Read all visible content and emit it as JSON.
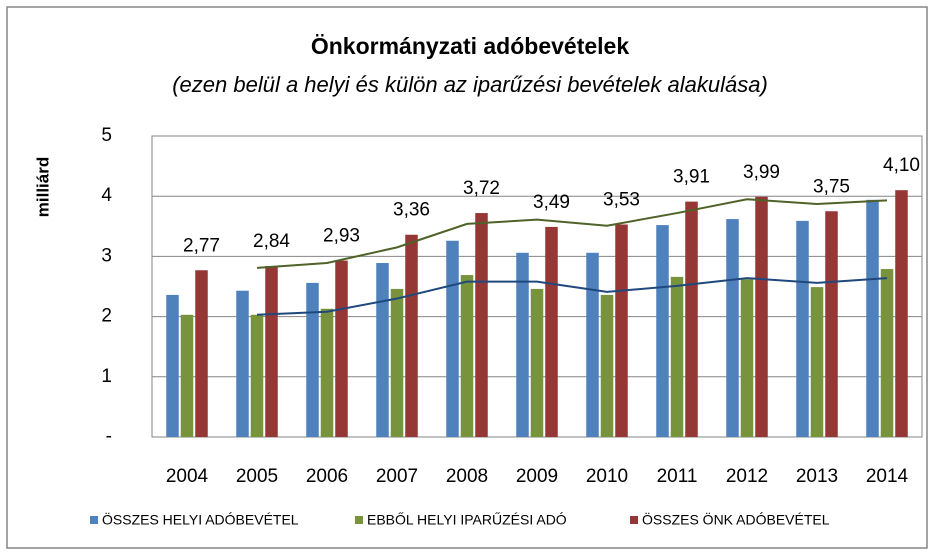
{
  "chart_data": {
    "type": "bar",
    "title": "Önkormányzati adóbevételek",
    "subtitle": "(ezen belül a helyi és külön az iparűzési bevételek alakulása)",
    "y_label": "milliárd",
    "categories": [
      "2004",
      "2005",
      "2006",
      "2007",
      "2008",
      "2009",
      "2010",
      "2011",
      "2012",
      "2013",
      "2014"
    ],
    "series": [
      {
        "name": "ÖSSZES HELYI ADÓBEVÉTEL",
        "color": "#4f81bd",
        "values": [
          2.36,
          2.43,
          2.56,
          2.89,
          3.26,
          3.06,
          3.06,
          3.52,
          3.62,
          3.59,
          3.94
        ]
      },
      {
        "name": "EBBŐL HELYI IPARŰZÉSI ADÓ",
        "color": "#77933c",
        "values": [
          2.03,
          2.03,
          2.13,
          2.46,
          2.69,
          2.46,
          2.36,
          2.66,
          2.62,
          2.49,
          2.79
        ]
      },
      {
        "name": "ÖSSZES ÖNK ADÓBEVÉTEL",
        "color": "#953735",
        "values": [
          2.77,
          2.84,
          2.93,
          3.36,
          3.72,
          3.49,
          3.53,
          3.91,
          3.99,
          3.75,
          4.1
        ],
        "value_labels": [
          "2,77",
          "2,84",
          "2,93",
          "3,36",
          "3,72",
          "3,49",
          "3,53",
          "3,91",
          "3,99",
          "3,75",
          "4,10"
        ]
      }
    ],
    "lines": [
      {
        "color": "#4f6228",
        "values": [
          null,
          2.81,
          2.89,
          3.15,
          3.54,
          3.61,
          3.51,
          3.72,
          3.95,
          3.87,
          3.93
        ]
      },
      {
        "color": "#1f497d",
        "values": [
          null,
          2.03,
          2.08,
          2.3,
          2.58,
          2.58,
          2.41,
          2.51,
          2.64,
          2.56,
          2.64
        ]
      }
    ],
    "ylim": [
      0,
      5
    ],
    "yticks": [
      {
        "value": 0,
        "label": "-"
      },
      1,
      2,
      3,
      4,
      5
    ],
    "grid": true,
    "legend": "bottom"
  }
}
